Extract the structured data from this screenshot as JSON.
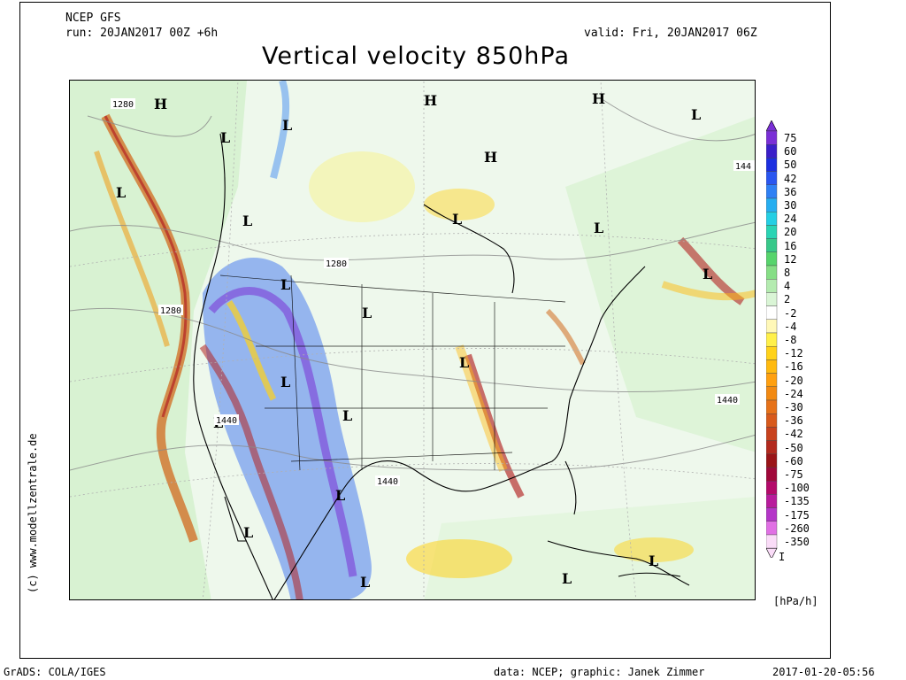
{
  "header": {
    "model": "NCEP GFS",
    "run": "run: 20JAN2017 00Z +6h",
    "valid": "valid: Fri, 20JAN2017 06Z"
  },
  "title": "Vertical velocity 850hPa",
  "side_credit": "(c) www.modellzentrale.de",
  "legend": {
    "unit": "[hPa/h]",
    "levels": [
      {
        "label": "75",
        "color": "#7a2fd6"
      },
      {
        "label": "60",
        "color": "#3a1fc9"
      },
      {
        "label": "50",
        "color": "#1c2fe0"
      },
      {
        "label": "42",
        "color": "#2a56f0"
      },
      {
        "label": "36",
        "color": "#2f80f4"
      },
      {
        "label": "30",
        "color": "#27aef0"
      },
      {
        "label": "24",
        "color": "#25cfe4"
      },
      {
        "label": "20",
        "color": "#2ad4b4"
      },
      {
        "label": "16",
        "color": "#38c88a"
      },
      {
        "label": "12",
        "color": "#57d46c"
      },
      {
        "label": "8",
        "color": "#86de86"
      },
      {
        "label": "4",
        "color": "#b4ebb0"
      },
      {
        "label": "2",
        "color": "#daf5d6"
      },
      {
        "label": "-2",
        "color": "#ffffff"
      },
      {
        "label": "-4",
        "color": "#fff8b8"
      },
      {
        "label": "-8",
        "color": "#fff04a"
      },
      {
        "label": "-12",
        "color": "#ffd21a"
      },
      {
        "label": "-16",
        "color": "#ffba10"
      },
      {
        "label": "-20",
        "color": "#ffa010"
      },
      {
        "label": "-24",
        "color": "#f28a12"
      },
      {
        "label": "-30",
        "color": "#e6721a"
      },
      {
        "label": "-36",
        "color": "#d85a1c"
      },
      {
        "label": "-42",
        "color": "#c8421e"
      },
      {
        "label": "-50",
        "color": "#b22a1e"
      },
      {
        "label": "-60",
        "color": "#9a1418"
      },
      {
        "label": "-75",
        "color": "#a0083a"
      },
      {
        "label": "-100",
        "color": "#b40a6a"
      },
      {
        "label": "-135",
        "color": "#b81c9c"
      },
      {
        "label": "-175",
        "color": "#b436c8"
      },
      {
        "label": "-260",
        "color": "#e070e4"
      },
      {
        "label": "-350",
        "color": "#fadcf8"
      }
    ],
    "top_arrow_label": "",
    "bottom_arrow_label": "I"
  },
  "map": {
    "pressure_markers": [
      "H",
      "H",
      "H",
      "H",
      "L",
      "L",
      "L",
      "L",
      "L",
      "L",
      "L",
      "L",
      "L",
      "L",
      "L",
      "L",
      "L",
      "L",
      "L",
      "L",
      "L",
      "L",
      "L",
      "L"
    ],
    "contour_labels": [
      "1280",
      "1280",
      "1280",
      "1440",
      "1440",
      "1440",
      "144"
    ]
  },
  "footer": {
    "left": "GrADS: COLA/IGES",
    "middle": "data: NCEP; graphic: Janek Zimmer",
    "right": "2017-01-20-05:56"
  }
}
